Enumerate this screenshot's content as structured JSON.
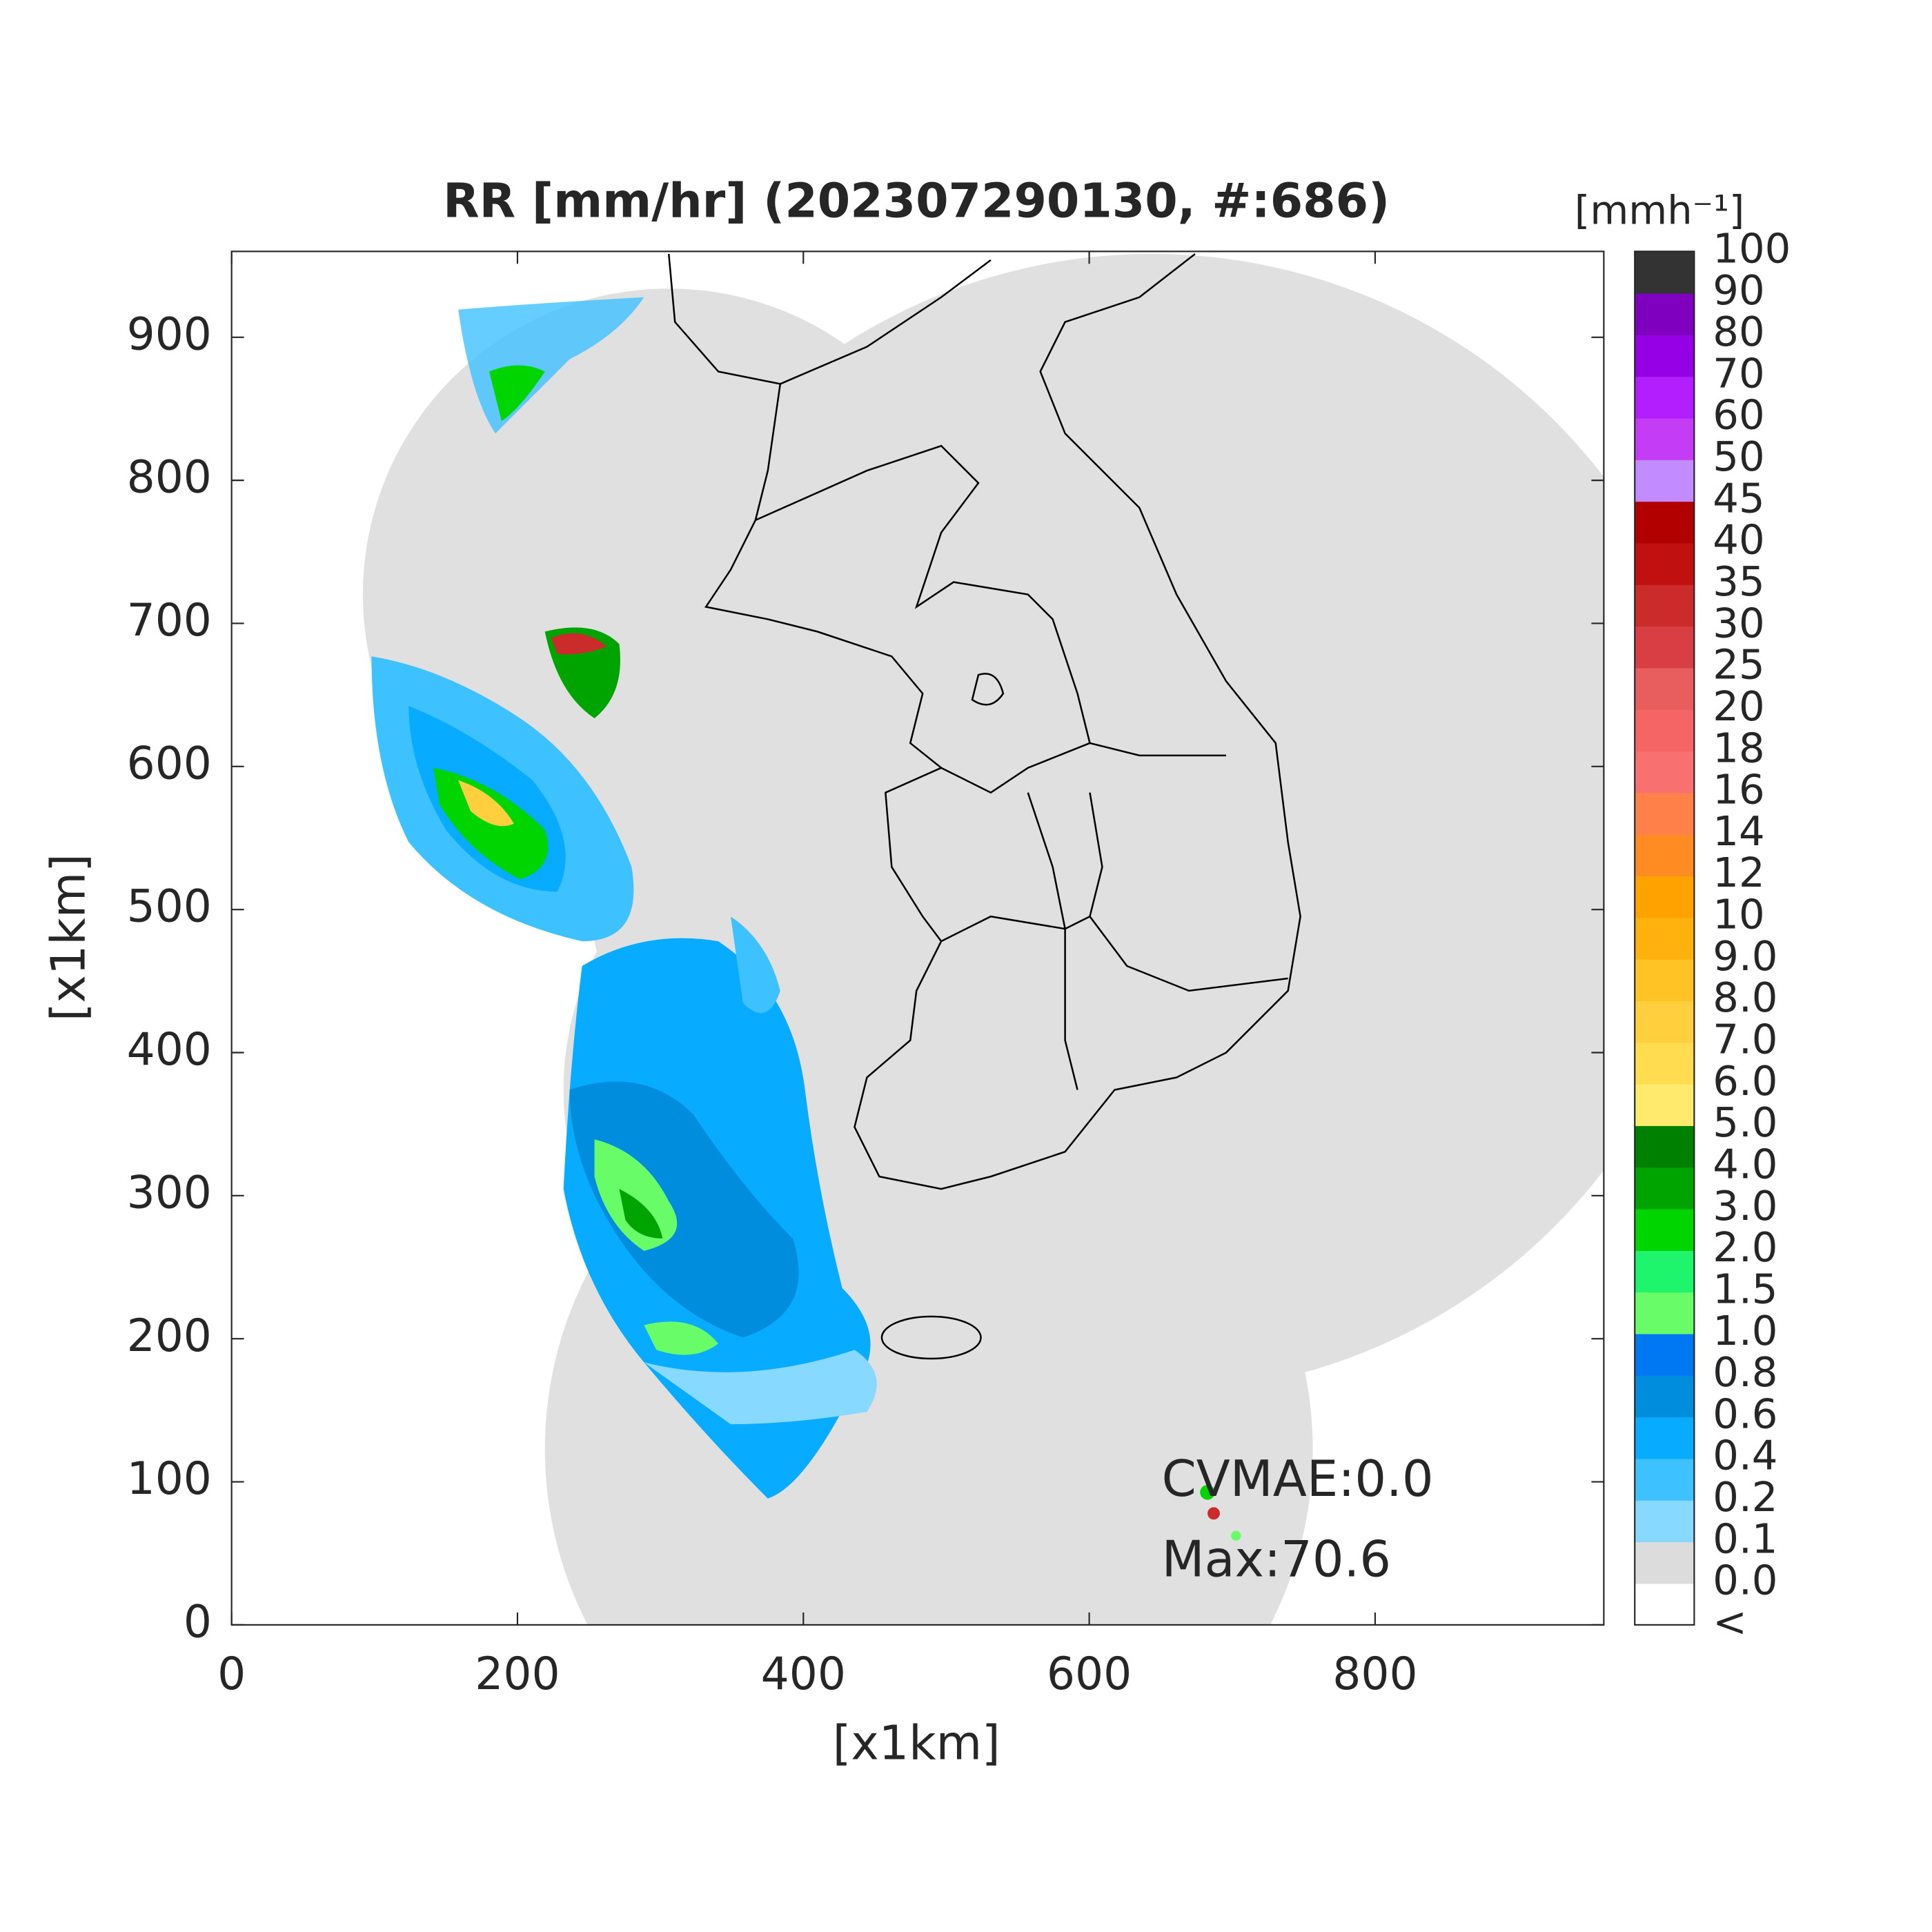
{
  "chart_data": {
    "type": "map",
    "title": "RR [mm/hr] (202307290130, #:686)",
    "x_label": "[x1km]",
    "y_label": "[x1km]",
    "xlim": [
      0,
      960
    ],
    "ylim": [
      0,
      960
    ],
    "xticks": [
      0,
      200,
      400,
      600,
      800
    ],
    "yticks": [
      0,
      100,
      200,
      300,
      400,
      500,
      600,
      700,
      800,
      900
    ],
    "annotations": [
      "CVMAE:0.0",
      "Max:70.6"
    ],
    "colorbar": {
      "title": "[mmh⁻¹]",
      "labels": [
        "<",
        "0.0",
        "0.1",
        "0.2",
        "0.4",
        "0.6",
        "0.8",
        "1.0",
        "1.5",
        "2.0",
        "3.0",
        "4.0",
        "5.0",
        "6.0",
        "7.0",
        "8.0",
        "9.0",
        "10",
        "12",
        "14",
        "16",
        "18",
        "20",
        "25",
        "30",
        "35",
        "40",
        "45",
        "50",
        "60",
        "70",
        "80",
        "90",
        "100"
      ],
      "colors": [
        "#ffffff",
        "#dcdcdc",
        "#87d9ff",
        "#3ec1ff",
        "#07abff",
        "#008dde",
        "#0077f3",
        "#69fc69",
        "#1ef46c",
        "#00d500",
        "#00a400",
        "#008000",
        "#ffea6e",
        "#ffdc50",
        "#ffcf3e",
        "#ffc326",
        "#ffb20e",
        "#ffa200",
        "#ff8c22",
        "#ff8048",
        "#f87070",
        "#f56565",
        "#e85d5d",
        "#d93e44",
        "#cc2b2b",
        "#c11010",
        "#b20000",
        "#c28bff",
        "#c43cf5",
        "#b21eff",
        "#9600e6",
        "#8000c0",
        "#333333"
      ]
    }
  }
}
